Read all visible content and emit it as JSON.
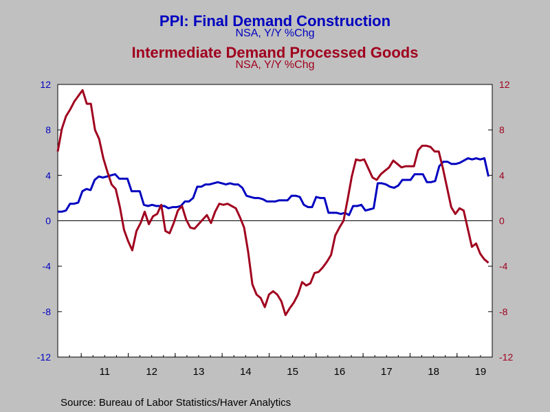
{
  "chart_data": {
    "type": "line",
    "title": "PPI: Final Demand Construction",
    "subtitle": "NSA, Y/Y %Chg",
    "title2": "Intermediate Demand Processed Goods",
    "subtitle2": "NSA, Y/Y %Chg",
    "x_tick_labels": [
      "11",
      "12",
      "13",
      "14",
      "15",
      "16",
      "17",
      "18",
      "19"
    ],
    "y_left": {
      "ylim": [
        -12,
        12
      ],
      "ticks": [
        "-12",
        "-8",
        "-4",
        "0",
        "4",
        "8",
        "12"
      ]
    },
    "y_right": {
      "ylim": [
        -12,
        12
      ],
      "ticks": [
        "-12",
        "-8",
        "-4",
        "0",
        "4",
        "8",
        "12"
      ]
    },
    "x_start_year": 2010.5,
    "x_end_year": 2019.75,
    "grid": false,
    "zero_line": true,
    "series": [
      {
        "key": "construction",
        "color": "#0000c0",
        "axis": "left",
        "values": [
          0.8,
          0.8,
          0.9,
          1.5,
          1.5,
          1.6,
          2.6,
          2.8,
          2.7,
          3.6,
          3.9,
          3.8,
          3.9,
          4.0,
          4.1,
          3.7,
          3.7,
          3.7,
          2.6,
          2.6,
          2.6,
          1.4,
          1.3,
          1.4,
          1.3,
          1.3,
          1.3,
          1.1,
          1.2,
          1.2,
          1.3,
          1.7,
          1.7,
          2.0,
          3.0,
          3.0,
          3.2,
          3.2,
          3.3,
          3.4,
          3.3,
          3.2,
          3.3,
          3.2,
          3.2,
          2.9,
          2.2,
          2.1,
          2.0,
          2.0,
          1.9,
          1.7,
          1.7,
          1.7,
          1.8,
          1.8,
          1.8,
          2.2,
          2.2,
          2.1,
          1.4,
          1.2,
          1.2,
          2.1,
          2.0,
          2.0,
          0.7,
          0.7,
          0.7,
          0.6,
          0.7,
          0.5,
          1.3,
          1.3,
          1.4,
          0.9,
          1.0,
          1.1,
          3.3,
          3.3,
          3.2,
          3.0,
          2.9,
          3.1,
          3.6,
          3.6,
          3.6,
          4.1,
          4.1,
          4.1,
          3.4,
          3.4,
          3.5,
          4.8,
          5.2,
          5.2,
          5.0,
          5.0,
          5.1,
          5.3,
          5.5,
          5.4,
          5.5,
          5.4,
          5.5,
          3.9
        ]
      },
      {
        "key": "processed_goods",
        "color": "#a0001e",
        "axis": "right",
        "values": [
          6.1,
          8.1,
          9.2,
          9.8,
          10.5,
          11.0,
          11.5,
          10.3,
          10.3,
          8.0,
          7.2,
          5.5,
          4.3,
          3.2,
          2.8,
          1.2,
          -0.8,
          -1.8,
          -2.6,
          -0.9,
          -0.2,
          0.8,
          -0.3,
          0.4,
          0.6,
          1.4,
          -0.9,
          -1.1,
          -0.2,
          0.9,
          1.3,
          0.1,
          -0.6,
          -0.7,
          -0.3,
          0.1,
          0.5,
          -0.2,
          0.8,
          1.5,
          1.4,
          1.5,
          1.3,
          1.1,
          0.3,
          -0.6,
          -2.8,
          -5.6,
          -6.5,
          -6.8,
          -7.6,
          -6.5,
          -6.2,
          -6.5,
          -7.1,
          -8.3,
          -7.7,
          -7.2,
          -6.5,
          -5.4,
          -5.7,
          -5.5,
          -4.6,
          -4.5,
          -4.1,
          -3.6,
          -3.0,
          -1.3,
          -0.6,
          0.0,
          1.9,
          3.9,
          5.4,
          5.3,
          5.4,
          4.6,
          3.8,
          3.6,
          4.1,
          4.4,
          4.7,
          5.3,
          5.0,
          4.7,
          4.8,
          4.8,
          4.8,
          6.2,
          6.6,
          6.6,
          6.5,
          6.1,
          6.1,
          4.6,
          2.9,
          1.2,
          0.6,
          1.1,
          0.9,
          -0.7,
          -2.3,
          -2.0,
          -2.9,
          -3.4,
          -3.7
        ]
      }
    ]
  },
  "source": "Source:  Bureau of Labor Statistics/Haver Analytics"
}
